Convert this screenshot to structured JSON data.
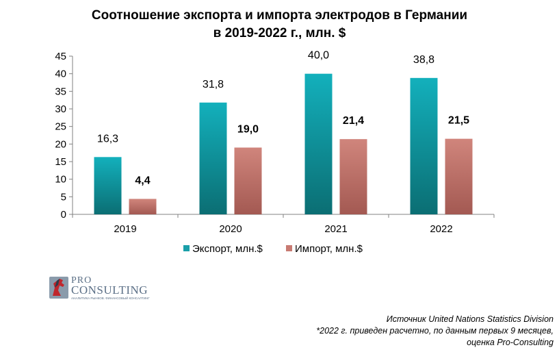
{
  "title_line1": "Соотношение экспорта и импорта электродов в Германии",
  "title_line2": "в 2019-2022 г., млн. $",
  "chart_data": {
    "type": "bar",
    "title": "Соотношение экспорта и импорта электродов в Германии в 2019-2022 г., млн. $",
    "categories": [
      "2019",
      "2020",
      "2021",
      "2022"
    ],
    "series": [
      {
        "name": "Экспорт, млн.$",
        "values": [
          16.3,
          31.8,
          40.0,
          38.8
        ],
        "labels": [
          "16,3",
          "31,8",
          "40,0",
          "38,8"
        ],
        "color": "#1a9fa9"
      },
      {
        "name": "Импорт, млн.$",
        "values": [
          4.4,
          19.0,
          21.4,
          21.5
        ],
        "labels": [
          "4,4",
          "19,0",
          "21,4",
          "21,5"
        ],
        "color": "#c87a72"
      }
    ],
    "yticks": [
      "0",
      "5",
      "10",
      "15",
      "20",
      "25",
      "30",
      "35",
      "40",
      "45"
    ],
    "ylim": [
      0,
      45
    ],
    "grid": false,
    "legend": "bottom"
  },
  "logo": {
    "line1": "PRO",
    "line2": "CONSULTING",
    "tagline": "АНАЛИТИКА РЫНКОВ. ФИНАНСОВЫЙ КОНСАЛТИНГ"
  },
  "notes": {
    "source": "Источник United Nations Statistics Division",
    "note1": "*2022 г. приведен расчетно, по данным первых 9 месяцев,",
    "note2": "оценка Pro-Consulting"
  }
}
